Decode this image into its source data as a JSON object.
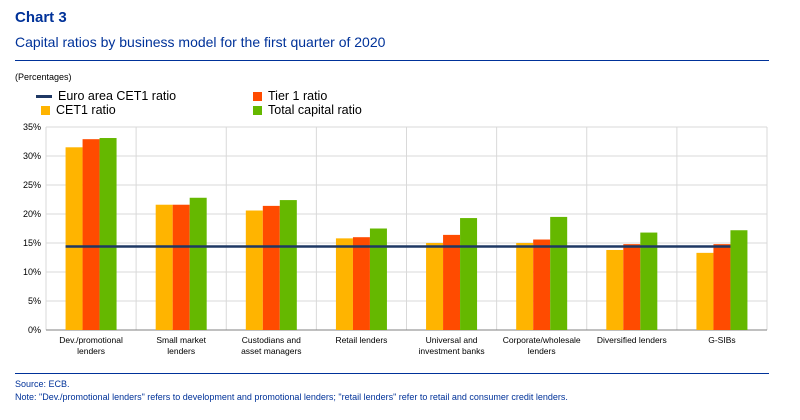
{
  "header": {
    "chart_number": "Chart 3",
    "title": "Capital ratios by business model for the first quarter of 2020",
    "unit": "(Percentages)"
  },
  "legend": {
    "euro_line": "Euro area CET1 ratio",
    "tier1": "Tier 1 ratio",
    "cet1": "CET1 ratio",
    "total": "Total capital ratio"
  },
  "footer": {
    "source": "Source: ECB.",
    "note": "Note: \"Dev./promotional lenders\" refers to development and promotional lenders; \"retail lenders\" refer to retail and consumer credit lenders."
  },
  "colors": {
    "cet1": "#ffb400",
    "tier1": "#ff4b00",
    "total": "#65b800",
    "euro_line": "#1f3864",
    "grid": "#d9d9d9",
    "accent": "#003299"
  },
  "chart_data": {
    "type": "bar",
    "categories": [
      [
        "Dev./promotional",
        "lenders"
      ],
      [
        "Small market",
        "lenders"
      ],
      [
        "Custodians and",
        "asset managers"
      ],
      [
        "Retail lenders"
      ],
      [
        "Universal and",
        "investment banks"
      ],
      [
        "Corporate/wholesale",
        "lenders"
      ],
      [
        "Diversified lenders"
      ],
      [
        "G-SIBs"
      ]
    ],
    "series": [
      {
        "name": "CET1 ratio",
        "key": "cet1",
        "values": [
          31.5,
          21.6,
          20.6,
          15.8,
          15.0,
          15.0,
          13.8,
          13.3
        ]
      },
      {
        "name": "Tier 1 ratio",
        "key": "tier1",
        "values": [
          32.9,
          21.6,
          21.4,
          16.0,
          16.4,
          15.6,
          14.8,
          14.8
        ]
      },
      {
        "name": "Total capital ratio",
        "key": "total",
        "values": [
          33.1,
          22.8,
          22.4,
          17.5,
          19.3,
          19.5,
          16.8,
          17.2
        ]
      }
    ],
    "reference_line": {
      "name": "Euro area CET1 ratio",
      "value": 14.4
    },
    "yticks": [
      "0%",
      "5%",
      "10%",
      "15%",
      "20%",
      "25%",
      "30%",
      "35%"
    ],
    "ylim": [
      0,
      35
    ],
    "grid": true,
    "legend_position": "top"
  }
}
